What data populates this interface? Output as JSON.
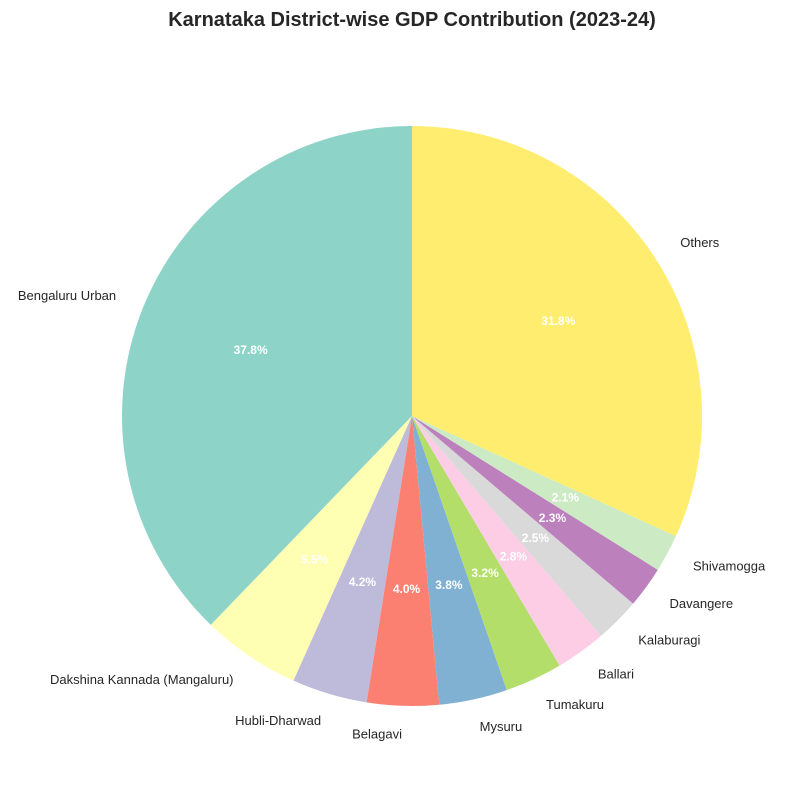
{
  "chart_data": {
    "type": "pie",
    "title": "Karnataka District-wise GDP Contribution (2023-24)",
    "start_angle_deg": 90,
    "direction": "counterclockwise",
    "slices": [
      {
        "label": "Bengaluru Urban",
        "value": 37.8,
        "pct_label": "37.8%",
        "color": "#8dd3c7"
      },
      {
        "label": "Dakshina Kannada (Mangaluru)",
        "value": 5.5,
        "pct_label": "5.5%",
        "color": "#ffffb3"
      },
      {
        "label": "Hubli-Dharwad",
        "value": 4.2,
        "pct_label": "4.2%",
        "color": "#bebada"
      },
      {
        "label": "Belagavi",
        "value": 4.0,
        "pct_label": "4.0%",
        "color": "#fb8072"
      },
      {
        "label": "Mysuru",
        "value": 3.8,
        "pct_label": "3.8%",
        "color": "#80b1d3"
      },
      {
        "label": "Tumakuru",
        "value": 3.2,
        "pct_label": "3.2%",
        "color": "#b3de69"
      },
      {
        "label": "Ballari",
        "value": 2.8,
        "pct_label": "2.8%",
        "color": "#fccde5"
      },
      {
        "label": "Kalaburagi",
        "value": 2.5,
        "pct_label": "2.5%",
        "color": "#d9d9d9"
      },
      {
        "label": "Davangere",
        "value": 2.3,
        "pct_label": "2.3%",
        "color": "#bc80bd"
      },
      {
        "label": "Shivamogga",
        "value": 2.1,
        "pct_label": "2.1%",
        "color": "#ccebc5"
      },
      {
        "label": "Others",
        "value": 31.8,
        "pct_label": "31.8%",
        "color": "#ffed6f"
      }
    ]
  }
}
